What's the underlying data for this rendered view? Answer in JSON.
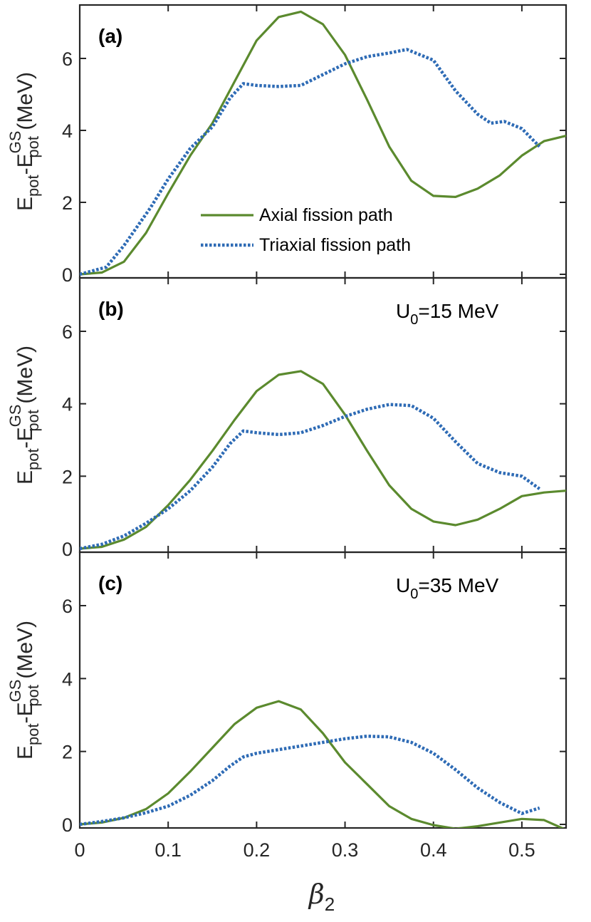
{
  "chart_data": {
    "type": "line",
    "xlabel_base": "β",
    "xlabel_sub": "2",
    "ylabel": {
      "base1": "E",
      "sub1": "pot",
      "sep": "-E",
      "sub2": "pot",
      "sup2": "GS",
      "unit": " (MeV)"
    },
    "xlim": [
      0,
      0.55
    ],
    "ylim": [
      0,
      7.5
    ],
    "xticks": [
      "0",
      "0.1",
      "0.2",
      "0.3",
      "0.4",
      "0.5"
    ],
    "xtick_values": [
      0,
      0.1,
      0.2,
      0.3,
      0.4,
      0.5
    ],
    "yticks": [
      "0",
      "2",
      "4",
      "6"
    ],
    "ytick_values": [
      0,
      2,
      4,
      6
    ],
    "colors": {
      "axial": "#5b8a2e",
      "triaxial": "#2e6bb5"
    },
    "legend": {
      "placement": "center-right of panel (a)",
      "entries": [
        {
          "name": "Axial fission path",
          "style": "solid",
          "color": "#5b8a2e"
        },
        {
          "name": "Triaxial fission path",
          "style": "dotted",
          "color": "#2e6bb5"
        }
      ]
    },
    "panels": [
      {
        "label": "(a)",
        "annotation": null,
        "series": [
          {
            "name": "Axial fission path",
            "x": [
              0,
              0.025,
              0.05,
              0.075,
              0.1,
              0.125,
              0.15,
              0.175,
              0.2,
              0.225,
              0.25,
              0.275,
              0.3,
              0.325,
              0.35,
              0.375,
              0.4,
              0.425,
              0.45,
              0.475,
              0.5,
              0.525,
              0.55
            ],
            "values": [
              0,
              0.05,
              0.35,
              1.15,
              2.25,
              3.3,
              4.2,
              5.35,
              6.5,
              7.15,
              7.3,
              6.95,
              6.1,
              4.85,
              3.55,
              2.6,
              2.18,
              2.15,
              2.38,
              2.75,
              3.3,
              3.7,
              3.85
            ]
          },
          {
            "name": "Triaxial fission path",
            "x": [
              0,
              0.03,
              0.05,
              0.08,
              0.1,
              0.125,
              0.15,
              0.17,
              0.185,
              0.2,
              0.225,
              0.25,
              0.275,
              0.3,
              0.325,
              0.35,
              0.37,
              0.4,
              0.425,
              0.45,
              0.465,
              0.48,
              0.5,
              0.52
            ],
            "values": [
              0,
              0.2,
              0.8,
              1.85,
              2.65,
              3.5,
              4.1,
              4.9,
              5.3,
              5.25,
              5.22,
              5.25,
              5.55,
              5.85,
              6.05,
              6.15,
              6.25,
              5.95,
              5.1,
              4.45,
              4.2,
              4.25,
              4.05,
              3.55
            ]
          }
        ]
      },
      {
        "label": "(b)",
        "annotation": {
          "base": "U",
          "sub": "0",
          "rest": "=15 MeV"
        },
        "series": [
          {
            "name": "Axial fission path",
            "x": [
              0,
              0.025,
              0.05,
              0.075,
              0.1,
              0.125,
              0.15,
              0.175,
              0.2,
              0.225,
              0.25,
              0.275,
              0.3,
              0.325,
              0.35,
              0.375,
              0.4,
              0.425,
              0.45,
              0.475,
              0.5,
              0.525,
              0.55
            ],
            "values": [
              0,
              0.05,
              0.25,
              0.6,
              1.2,
              1.9,
              2.7,
              3.55,
              4.35,
              4.8,
              4.9,
              4.55,
              3.7,
              2.7,
              1.75,
              1.1,
              0.75,
              0.65,
              0.8,
              1.1,
              1.45,
              1.55,
              1.6
            ]
          },
          {
            "name": "Triaxial fission path",
            "x": [
              0,
              0.025,
              0.05,
              0.075,
              0.1,
              0.125,
              0.15,
              0.17,
              0.185,
              0.2,
              0.225,
              0.25,
              0.275,
              0.3,
              0.325,
              0.35,
              0.375,
              0.4,
              0.425,
              0.45,
              0.475,
              0.5,
              0.52
            ],
            "values": [
              0,
              0.12,
              0.35,
              0.7,
              1.1,
              1.6,
              2.25,
              2.9,
              3.25,
              3.2,
              3.15,
              3.2,
              3.4,
              3.65,
              3.85,
              3.98,
              3.95,
              3.6,
              2.95,
              2.35,
              2.1,
              2.0,
              1.65
            ]
          }
        ]
      },
      {
        "label": "(c)",
        "annotation": {
          "base": "U",
          "sub": "0",
          "rest": "=35 MeV"
        },
        "series": [
          {
            "name": "Axial fission path",
            "x": [
              0,
              0.025,
              0.05,
              0.075,
              0.1,
              0.125,
              0.15,
              0.175,
              0.2,
              0.225,
              0.25,
              0.275,
              0.3,
              0.325,
              0.35,
              0.375,
              0.4,
              0.425,
              0.45,
              0.475,
              0.5,
              0.525,
              0.55
            ],
            "values": [
              0,
              0.05,
              0.18,
              0.42,
              0.85,
              1.45,
              2.1,
              2.75,
              3.2,
              3.38,
              3.15,
              2.5,
              1.7,
              1.1,
              0.5,
              0.15,
              -0.02,
              -0.12,
              -0.05,
              0.05,
              0.15,
              0.12,
              -0.15
            ]
          },
          {
            "name": "Triaxial fission path",
            "x": [
              0,
              0.025,
              0.05,
              0.075,
              0.1,
              0.125,
              0.15,
              0.17,
              0.185,
              0.2,
              0.225,
              0.25,
              0.275,
              0.3,
              0.325,
              0.35,
              0.375,
              0.4,
              0.425,
              0.45,
              0.475,
              0.5,
              0.52
            ],
            "values": [
              0,
              0.08,
              0.18,
              0.32,
              0.5,
              0.8,
              1.2,
              1.6,
              1.85,
              1.95,
              2.05,
              2.15,
              2.25,
              2.35,
              2.42,
              2.4,
              2.25,
              1.95,
              1.5,
              1.0,
              0.6,
              0.3,
              0.45
            ]
          }
        ]
      }
    ]
  }
}
